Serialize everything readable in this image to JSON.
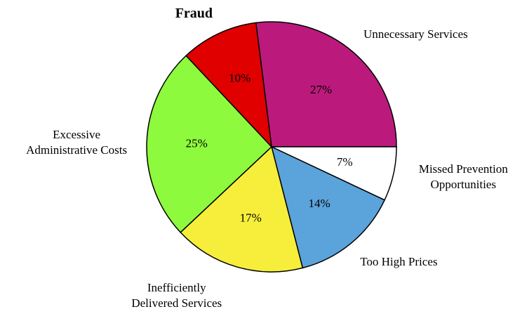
{
  "chart_data": {
    "type": "pie",
    "categories": [
      "Unnecessary Services",
      "Missed Prevention Opportunities",
      "Too High Prices",
      "Inefficiently Delivered Services",
      "Excessive Administrative Costs",
      "Fraud"
    ],
    "values": [
      27,
      7,
      14,
      17,
      25,
      10
    ],
    "value_labels": [
      "27%",
      "7%",
      "14%",
      "17%",
      "25%",
      "10%"
    ],
    "colors": [
      "#bb1a7c",
      "#ffffff",
      "#5ba3db",
      "#f7ee3c",
      "#8dfa3e",
      "#e00000"
    ]
  }
}
